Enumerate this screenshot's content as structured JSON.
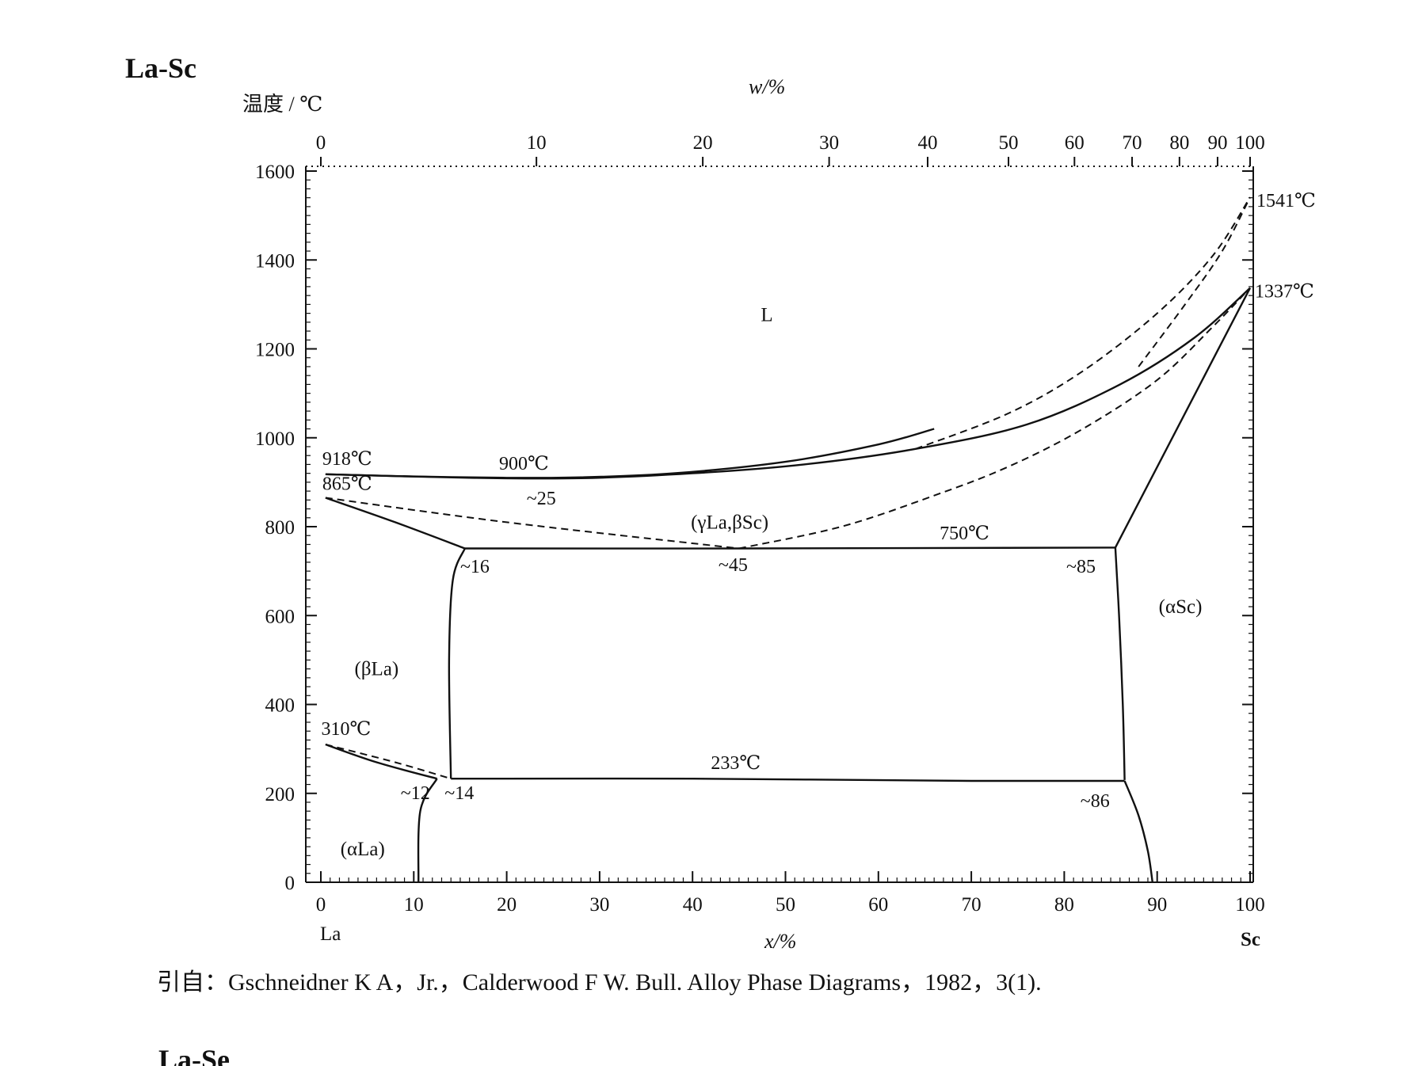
{
  "title": "La-Sc",
  "next_title": "La-Se",
  "y_axis": {
    "label": "温度 / ℃",
    "ticks": [
      0,
      200,
      400,
      600,
      800,
      1000,
      1200,
      1400,
      1600
    ]
  },
  "x_axis_bottom": {
    "label": "x/%",
    "ticks": [
      0,
      10,
      20,
      30,
      40,
      50,
      60,
      70,
      80,
      90,
      100
    ],
    "left_element": "La",
    "right_element": "Sc"
  },
  "x_axis_top": {
    "label": "w/%",
    "ticks": [
      "0",
      "10",
      "20",
      "30",
      "40",
      "50",
      "60",
      "70",
      "80",
      "90",
      "100"
    ],
    "tick_positions_x": [
      0,
      23.2,
      41.1,
      54.7,
      65.3,
      74.0,
      81.1,
      87.3,
      92.4,
      96.5,
      100
    ]
  },
  "temperature_labels": [
    {
      "text": "918℃",
      "x": 0.5,
      "t": 918
    },
    {
      "text": "865℃",
      "x": 0.5,
      "t": 865
    },
    {
      "text": "900℃",
      "x": 22,
      "t": 900
    },
    {
      "text": "750℃",
      "x": 70,
      "t": 750
    },
    {
      "text": "310℃",
      "x": 0.3,
      "t": 310
    },
    {
      "text": "233℃",
      "x": 43,
      "t": 233
    },
    {
      "text": "1541℃",
      "x": 100,
      "t": 1541
    },
    {
      "text": "1337℃",
      "x": 100,
      "t": 1337
    }
  ],
  "composition_labels": [
    {
      "text": "~25",
      "x": 23,
      "t": 900
    },
    {
      "text": "~16",
      "x": 15,
      "t": 750
    },
    {
      "text": "~45",
      "x": 45,
      "t": 750
    },
    {
      "text": "~85",
      "x": 85,
      "t": 750
    },
    {
      "text": "~12",
      "x": 12,
      "t": 233
    },
    {
      "text": "~14",
      "x": 14,
      "t": 233
    },
    {
      "text": "~86",
      "x": 86,
      "t": 233
    }
  ],
  "phase_labels": [
    {
      "text": "L",
      "x": 48,
      "t": 1280
    },
    {
      "text": "(γLa,βSc)",
      "x": 44,
      "t": 810
    },
    {
      "text": "(αSc)",
      "x": 92.5,
      "t": 620
    },
    {
      "text": "(βLa)",
      "x": 6,
      "t": 480
    },
    {
      "text": "(αLa)",
      "x": 4.5,
      "t": 75
    }
  ],
  "solid_lines": [
    [
      [
        0.5,
        918
      ],
      [
        16,
        910
      ],
      [
        28,
        909
      ],
      [
        40,
        920
      ],
      [
        52,
        940
      ],
      [
        64,
        975
      ],
      [
        76,
        1030
      ],
      [
        86,
        1120
      ],
      [
        94,
        1225
      ],
      [
        100,
        1337
      ]
    ],
    [
      [
        0.5,
        918
      ],
      [
        10,
        913
      ],
      [
        20,
        910
      ],
      [
        28,
        911
      ],
      [
        38,
        920
      ],
      [
        50,
        946
      ],
      [
        60,
        985
      ],
      [
        66,
        1020
      ]
    ],
    [
      [
        0.5,
        865
      ],
      [
        8,
        810
      ],
      [
        15.5,
        751
      ]
    ],
    [
      [
        15.5,
        751
      ],
      [
        45,
        751
      ],
      [
        85.5,
        753
      ]
    ],
    [
      [
        85.5,
        753
      ],
      [
        100,
        1337
      ]
    ],
    [
      [
        15.5,
        751
      ],
      [
        14.2,
        680
      ],
      [
        13.8,
        500
      ],
      [
        14,
        233
      ]
    ],
    [
      [
        85.5,
        753
      ],
      [
        85.9,
        600
      ],
      [
        86.3,
        400
      ],
      [
        86.5,
        230
      ]
    ],
    [
      [
        14,
        233
      ],
      [
        40,
        233
      ],
      [
        70,
        228
      ],
      [
        86.5,
        228
      ]
    ],
    [
      [
        0.5,
        310
      ],
      [
        6,
        270
      ],
      [
        12.5,
        233
      ]
    ],
    [
      [
        12.5,
        233
      ],
      [
        10.7,
        160
      ],
      [
        10.5,
        0
      ]
    ],
    [
      [
        86.5,
        228
      ],
      [
        88,
        150
      ],
      [
        89,
        70
      ],
      [
        89.5,
        0
      ]
    ]
  ],
  "dashed_lines": [
    [
      [
        64,
        975
      ],
      [
        74,
        1055
      ],
      [
        82,
        1150
      ],
      [
        90,
        1280
      ],
      [
        96,
        1410
      ],
      [
        100,
        1541
      ]
    ],
    [
      [
        88,
        1160
      ],
      [
        93,
        1300
      ],
      [
        97,
        1420
      ],
      [
        100,
        1541
      ]
    ],
    [
      [
        45,
        751
      ],
      [
        56,
        800
      ],
      [
        66,
        870
      ],
      [
        74,
        935
      ],
      [
        82,
        1020
      ],
      [
        90,
        1130
      ],
      [
        96,
        1250
      ],
      [
        100,
        1337
      ]
    ],
    [
      [
        0.5,
        865
      ],
      [
        20,
        810
      ],
      [
        45,
        751
      ]
    ],
    [
      [
        0.5,
        310
      ],
      [
        8,
        270
      ],
      [
        14,
        233
      ]
    ]
  ],
  "citation": "引自：Gschneidner K A，Jr.，Calderwood F W. Bull.  Alloy Phase Diagrams，1982，3(1)."
}
